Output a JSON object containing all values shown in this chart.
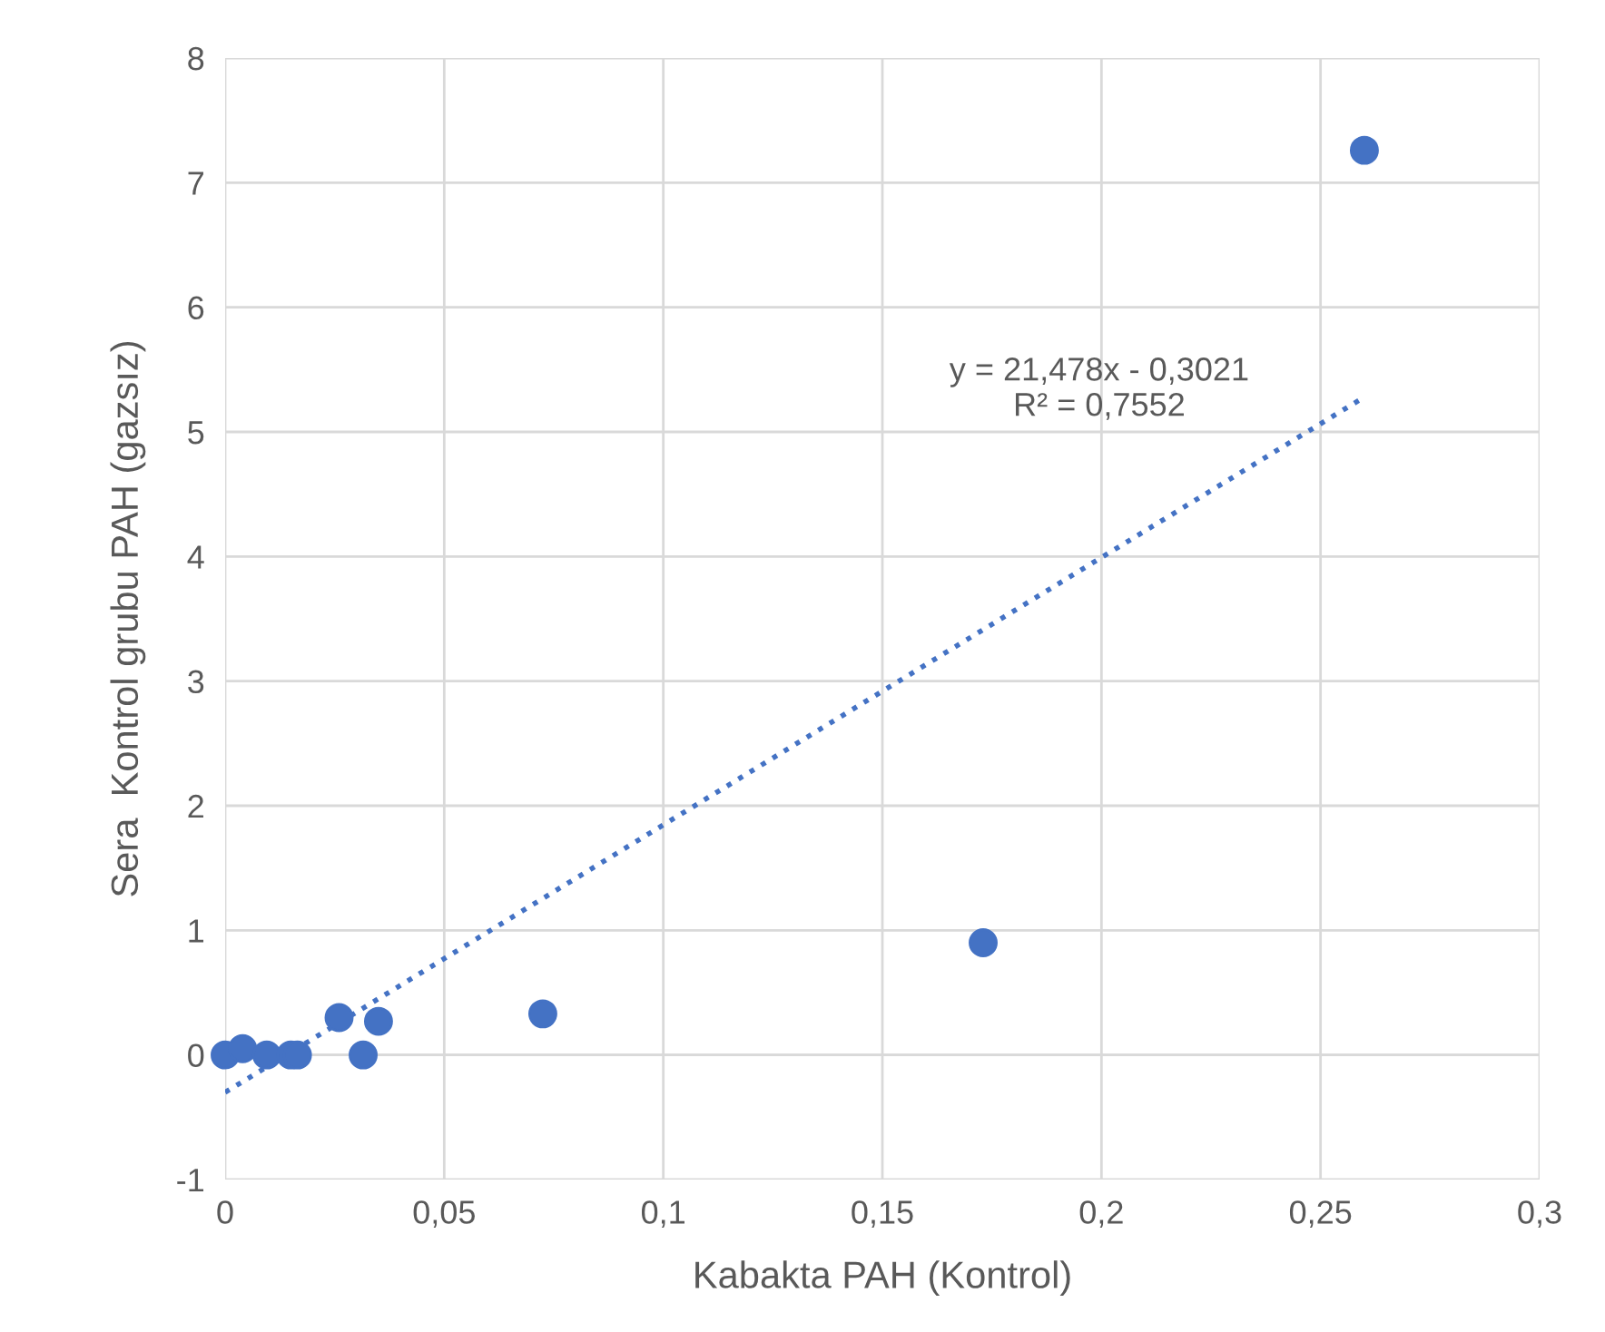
{
  "chart_data": {
    "type": "scatter",
    "xlabel": "Kabakta PAH (Kontrol)",
    "ylabel": "Sera  Kontrol grubu PAH (gazsız)",
    "series": [
      {
        "color": "#4472c4",
        "x": [
          0,
          0.004,
          0.0095,
          0.015,
          0.0165,
          0.026,
          0.0315,
          0.035,
          0.0725,
          0.173,
          0.26
        ],
        "values": [
          0,
          0.05,
          0,
          0,
          0,
          0.3,
          0,
          0.27,
          0.33,
          0.9,
          7.26
        ]
      },
      {
        "type": "line",
        "color": "#4472c4",
        "line_style": "dotted",
        "marker": "none",
        "x": [
          0,
          0.26
        ],
        "values": [
          -0.3,
          5.28
        ]
      }
    ],
    "annotations": [
      "y = 21,478x - 0,3021\nR² = 0,7552"
    ],
    "xlim": [
      0,
      0.3
    ],
    "xticks": [
      0,
      {
        "value": 0.05,
        "label": "0,05"
      },
      {
        "value": 0.1,
        "label": "0,1"
      },
      {
        "value": 0.15,
        "label": "0,15"
      },
      {
        "value": 0.2,
        "label": "0,2"
      },
      {
        "value": 0.25,
        "label": "0,25"
      },
      {
        "value": 0.3,
        "label": "0,3"
      }
    ],
    "ylim": [
      -1,
      8
    ],
    "yticks": [
      -1,
      0,
      1,
      2,
      3,
      4,
      5,
      6,
      7,
      8
    ],
    "grid": true,
    "legend": false,
    "marker": "circle"
  }
}
